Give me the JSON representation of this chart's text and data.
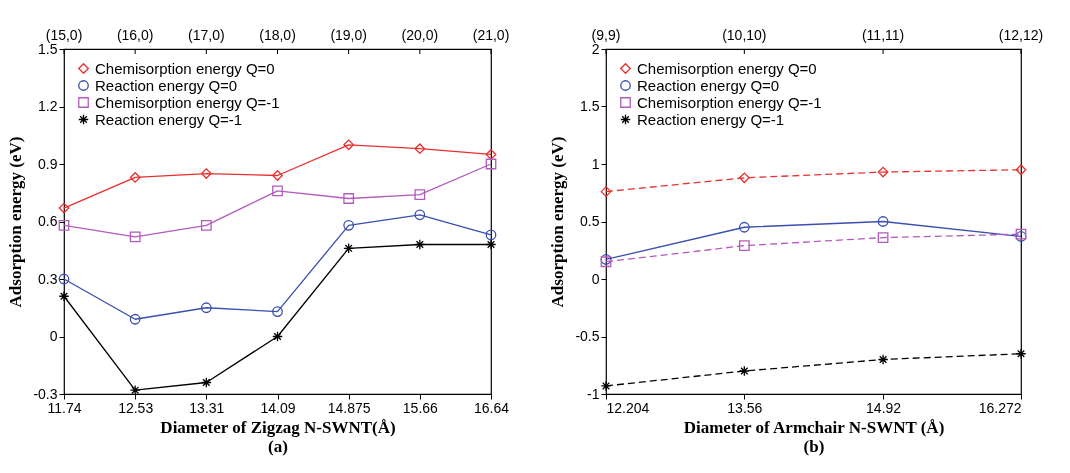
{
  "chart_data": [
    {
      "type": "line",
      "xlabel": "Diameter of Zigzag N-SWNT(Å)",
      "ylabel": "Adsorption energy (eV)",
      "annotations": [
        "(a)",
        {
          "text": "(15,0)",
          "x": "11.74"
        },
        {
          "text": "(16,0)",
          "x": "12.53"
        },
        {
          "text": "(17,0)",
          "x": "13.31"
        },
        {
          "text": "(18,0)",
          "x": "14.09"
        },
        {
          "text": "(19,0)",
          "x": "14.875"
        },
        {
          "text": "(20,0)",
          "x": "15.66"
        },
        {
          "text": "(21,0)",
          "x": "16.64"
        }
      ],
      "categories": [
        "11.74",
        "12.53",
        "13.31",
        "14.09",
        "14.875",
        "15.66",
        "16.64"
      ],
      "ylim": [
        -0.3,
        1.5
      ],
      "yticks": [
        -0.3,
        0,
        0.3,
        0.6,
        0.9,
        1.2,
        1.5
      ],
      "legend": "top left",
      "line_style": "solid",
      "series": [
        {
          "name": "Chemisorption energy Q=0",
          "color": "#e8312f",
          "marker": "diamond",
          "values": [
            0.67,
            0.83,
            0.85,
            0.84,
            1.0,
            0.98,
            0.95
          ]
        },
        {
          "name": "Reaction energy Q=0",
          "color": "#3a4fae",
          "marker": "circle",
          "values": [
            0.3,
            0.09,
            0.15,
            0.13,
            0.58,
            0.635,
            0.53
          ]
        },
        {
          "name": "Chemisorption energy Q=-1",
          "color": "#b35bbd",
          "marker": "square",
          "values": [
            0.58,
            0.52,
            0.58,
            0.76,
            0.72,
            0.74,
            0.9
          ]
        },
        {
          "name": "Reaction energy Q=-1",
          "color": "#000000",
          "marker": "cross",
          "values": [
            0.21,
            -0.28,
            -0.24,
            0.0,
            0.46,
            0.48,
            0.48
          ]
        }
      ]
    },
    {
      "type": "line",
      "xlabel": "Diameter of Armchair N-SWNT (Å)",
      "ylabel": "Adsorption energy (eV)",
      "annotations": [
        "(b)",
        {
          "text": "(9,9)",
          "x": 12.204
        },
        {
          "text": "(10,10)",
          "x": 13.56
        },
        {
          "text": "(11,11)",
          "x": 14.92
        },
        {
          "text": "(12,12)",
          "x": 16.272
        }
      ],
      "x": [
        12.204,
        13.56,
        14.92,
        16.272
      ],
      "xlim": [
        12.204,
        16.272
      ],
      "xticks": [
        12.204,
        13.56,
        14.92,
        16.272
      ],
      "ylim": [
        -1,
        2
      ],
      "yticks": [
        -1,
        -0.5,
        0,
        0.5,
        1,
        1.5,
        2
      ],
      "legend": "top left",
      "series": [
        {
          "name": "Chemisorption energy Q=0",
          "color": "#e8312f",
          "marker": "diamond",
          "line_style": "dashed",
          "values": [
            0.76,
            0.88,
            0.93,
            0.95
          ]
        },
        {
          "name": "Reaction energy Q=0",
          "color": "#3a4fae",
          "marker": "circle",
          "line_style": "solid",
          "values": [
            0.17,
            0.45,
            0.5,
            0.37
          ]
        },
        {
          "name": "Chemisorption energy Q=-1",
          "color": "#b35bbd",
          "marker": "square",
          "line_style": "dashed",
          "values": [
            0.15,
            0.29,
            0.36,
            0.39
          ]
        },
        {
          "name": "Reaction energy Q=-1",
          "color": "#000000",
          "marker": "cross",
          "line_style": "dashed",
          "values": [
            -0.93,
            -0.8,
            -0.7,
            -0.65
          ]
        }
      ]
    }
  ]
}
